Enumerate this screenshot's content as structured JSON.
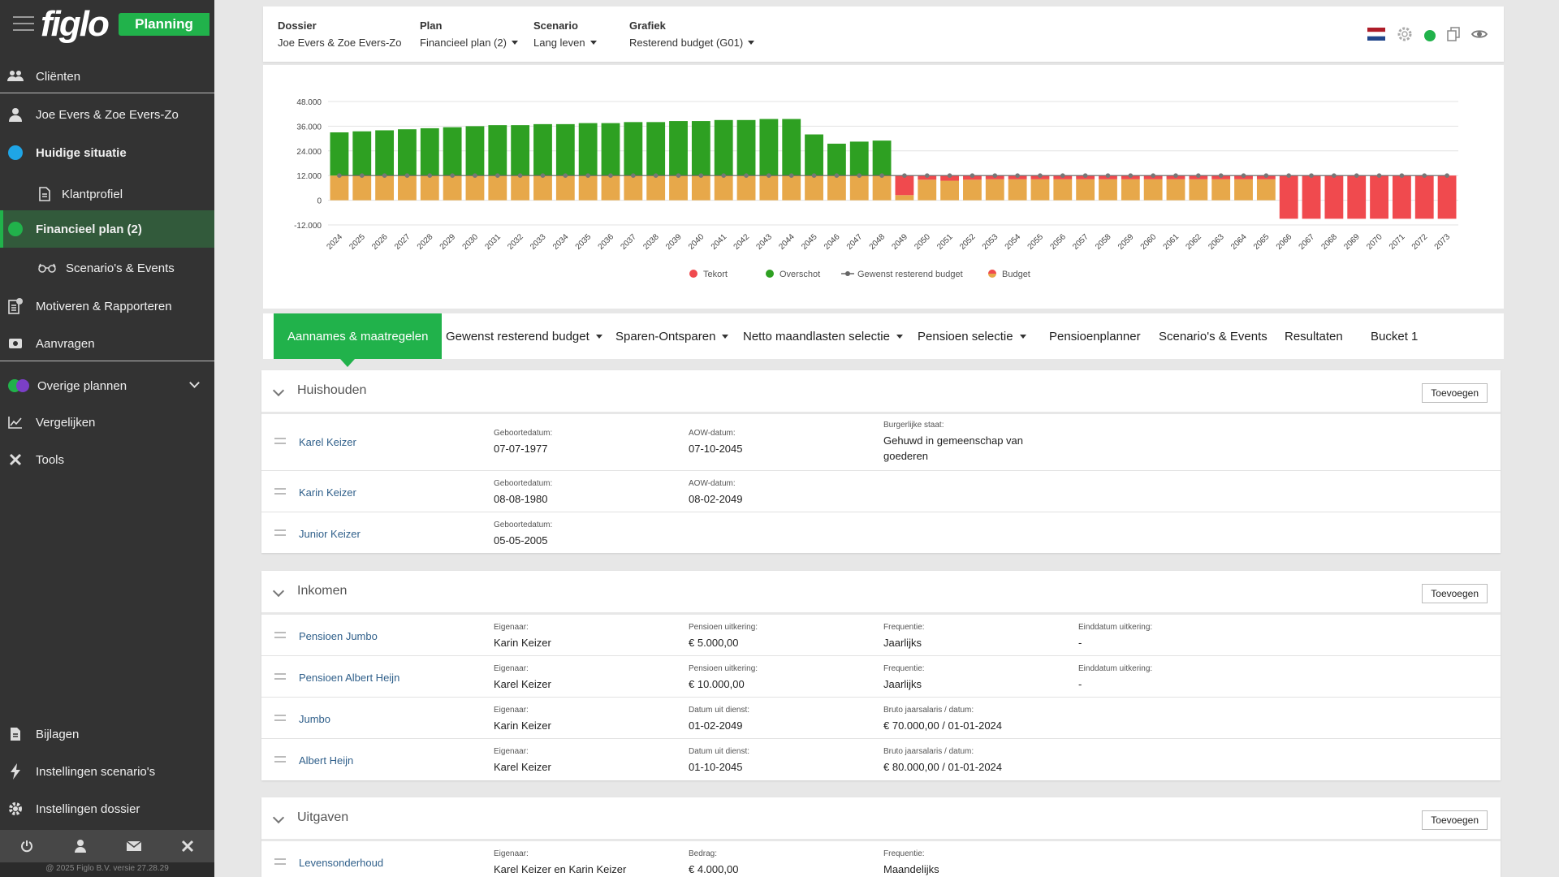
{
  "app": {
    "logo": "figlo",
    "badge": "Planning"
  },
  "sidebar": {
    "items": [
      {
        "label": "Cliënten"
      },
      {
        "label": "Joe Evers & Zoe Evers-Zo"
      },
      {
        "label": "Huidige situatie"
      },
      {
        "label": "Klantprofiel"
      },
      {
        "label": "Financieel plan (2)"
      },
      {
        "label": "Scenario's & Events"
      },
      {
        "label": "Motiveren & Rapporteren"
      },
      {
        "label": "Aanvragen"
      },
      {
        "label": "Overige plannen"
      },
      {
        "label": "Vergelijken"
      },
      {
        "label": "Tools"
      },
      {
        "label": "Bijlagen"
      },
      {
        "label": "Instellingen scenario's"
      },
      {
        "label": "Instellingen dossier"
      }
    ],
    "copyright": "@ 2025 Figlo B.V. versie 27.28.29"
  },
  "topbar": {
    "dossier": {
      "label": "Dossier",
      "value": "Joe Evers & Zoe Evers-Zo"
    },
    "plan": {
      "label": "Plan",
      "value": "Financieel plan (2)"
    },
    "scenario": {
      "label": "Scenario",
      "value": "Lang leven"
    },
    "grafiek": {
      "label": "Grafiek",
      "value": "Resterend budget (G01)"
    }
  },
  "chart_data": {
    "type": "bar",
    "title": "",
    "ylim": [
      -12000,
      48000
    ],
    "yticks": [
      "48.000",
      "36.000",
      "24.000",
      "12.000",
      "0",
      "-12.000"
    ],
    "categories": [
      "2024",
      "2025",
      "2026",
      "2027",
      "2028",
      "2029",
      "2030",
      "2031",
      "2032",
      "2033",
      "2034",
      "2035",
      "2036",
      "2037",
      "2038",
      "2039",
      "2040",
      "2041",
      "2042",
      "2043",
      "2044",
      "2045",
      "2046",
      "2047",
      "2048",
      "2049",
      "2050",
      "2051",
      "2052",
      "2053",
      "2054",
      "2055",
      "2056",
      "2057",
      "2058",
      "2059",
      "2060",
      "2061",
      "2062",
      "2063",
      "2064",
      "2065",
      "2066",
      "2067",
      "2068",
      "2069",
      "2070",
      "2071",
      "2072",
      "2073"
    ],
    "series": [
      {
        "name": "Tekort",
        "color": "#f04a4e",
        "values": [
          0,
          0,
          0,
          0,
          0,
          0,
          0,
          0,
          0,
          0,
          0,
          0,
          0,
          0,
          0,
          0,
          0,
          0,
          0,
          0,
          0,
          0,
          0,
          0,
          0,
          9500,
          2000,
          2500,
          2000,
          1800,
          1800,
          1800,
          1800,
          1800,
          1800,
          1800,
          1800,
          1800,
          1800,
          1800,
          1800,
          1800,
          21000,
          21000,
          21000,
          21000,
          21000,
          21000,
          21000,
          21000
        ]
      },
      {
        "name": "Overschot",
        "color": "#2ea022",
        "values": [
          21000,
          21500,
          22000,
          22500,
          23000,
          23500,
          24000,
          24500,
          24500,
          25000,
          25000,
          25500,
          25500,
          26000,
          26000,
          26500,
          26500,
          27000,
          27000,
          27500,
          27500,
          20000,
          15500,
          16500,
          17000,
          0,
          0,
          0,
          0,
          0,
          0,
          0,
          0,
          0,
          0,
          0,
          0,
          0,
          0,
          0,
          0,
          0,
          0,
          0,
          0,
          0,
          0,
          0,
          0,
          0
        ]
      },
      {
        "name": "Gewenst resterend budget",
        "color": "#777777",
        "values": [
          12000,
          12000,
          12000,
          12000,
          12000,
          12000,
          12000,
          12000,
          12000,
          12000,
          12000,
          12000,
          12000,
          12000,
          12000,
          12000,
          12000,
          12000,
          12000,
          12000,
          12000,
          12000,
          12000,
          12000,
          12000,
          12000,
          12000,
          12000,
          12000,
          12000,
          12000,
          12000,
          12000,
          12000,
          12000,
          12000,
          12000,
          12000,
          12000,
          12000,
          12000,
          12000,
          12000,
          12000,
          12000,
          12000,
          12000,
          12000,
          12000,
          12000
        ]
      },
      {
        "name": "Budget",
        "color": "#e7a84a",
        "values": [
          12000,
          12000,
          12000,
          12000,
          12000,
          12000,
          12000,
          12000,
          12000,
          12000,
          12000,
          12000,
          12000,
          12000,
          12000,
          12000,
          12000,
          12000,
          12000,
          12000,
          12000,
          12000,
          12000,
          12000,
          12000,
          2500,
          10000,
          9500,
          10000,
          10200,
          10200,
          10200,
          10200,
          10200,
          10200,
          10200,
          10200,
          10200,
          10200,
          10200,
          10200,
          10200,
          0,
          0,
          0,
          0,
          0,
          0,
          0,
          0
        ]
      }
    ]
  },
  "tabs": [
    {
      "label": "Aannames & maatregelen"
    },
    {
      "label": "Gewenst resterend budget"
    },
    {
      "label": "Sparen-Ontsparen"
    },
    {
      "label": "Netto maandlasten selectie"
    },
    {
      "label": "Pensioen selectie"
    },
    {
      "label": "Pensioenplanner"
    },
    {
      "label": "Scenario's & Events"
    },
    {
      "label": "Resultaten"
    },
    {
      "label": "Bucket 1"
    }
  ],
  "add_label": "Toevoegen",
  "huishouden": {
    "title": "Huishouden",
    "rows": [
      {
        "name": "Karel Keizer",
        "c1l": "Geboortedatum:",
        "c1v": "07-07-1977",
        "c2l": "AOW-datum:",
        "c2v": "07-10-2045",
        "c3l": "Burgerlijke staat:",
        "c3v": "Gehuwd in gemeenschap van goederen"
      },
      {
        "name": "Karin Keizer",
        "c1l": "Geboortedatum:",
        "c1v": "08-08-1980",
        "c2l": "AOW-datum:",
        "c2v": "08-02-2049"
      },
      {
        "name": "Junior Keizer",
        "c1l": "Geboortedatum:",
        "c1v": "05-05-2005"
      }
    ]
  },
  "inkomen": {
    "title": "Inkomen",
    "rows": [
      {
        "name": "Pensioen Jumbo",
        "c1l": "Eigenaar:",
        "c1v": "Karin Keizer",
        "c2l": "Pensioen uitkering:",
        "c2v": "€ 5.000,00",
        "c3l": "Frequentie:",
        "c3v": "Jaarlijks",
        "c4l": "Einddatum uitkering:",
        "c4v": "-"
      },
      {
        "name": "Pensioen Albert Heijn",
        "c1l": "Eigenaar:",
        "c1v": "Karel Keizer",
        "c2l": "Pensioen uitkering:",
        "c2v": "€ 10.000,00",
        "c3l": "Frequentie:",
        "c3v": "Jaarlijks",
        "c4l": "Einddatum uitkering:",
        "c4v": "-"
      },
      {
        "name": "Jumbo",
        "c1l": "Eigenaar:",
        "c1v": "Karin Keizer",
        "c2l": "Datum uit dienst:",
        "c2v": "01-02-2049",
        "c3l": "Bruto jaarsalaris / datum:",
        "c3v": "€ 70.000,00 / 01-01-2024"
      },
      {
        "name": "Albert Heijn",
        "c1l": "Eigenaar:",
        "c1v": "Karel Keizer",
        "c2l": "Datum uit dienst:",
        "c2v": "01-10-2045",
        "c3l": "Bruto jaarsalaris / datum:",
        "c3v": "€ 80.000,00 / 01-01-2024"
      }
    ]
  },
  "uitgaven": {
    "title": "Uitgaven",
    "rows": [
      {
        "name": "Levensonderhoud",
        "c1l": "Eigenaar:",
        "c1v": "Karel Keizer en Karin Keizer",
        "c2l": "Bedrag:",
        "c2v": "€ 4.000,00",
        "c3l": "Frequentie:",
        "c3v": "Maandelijks"
      }
    ]
  }
}
